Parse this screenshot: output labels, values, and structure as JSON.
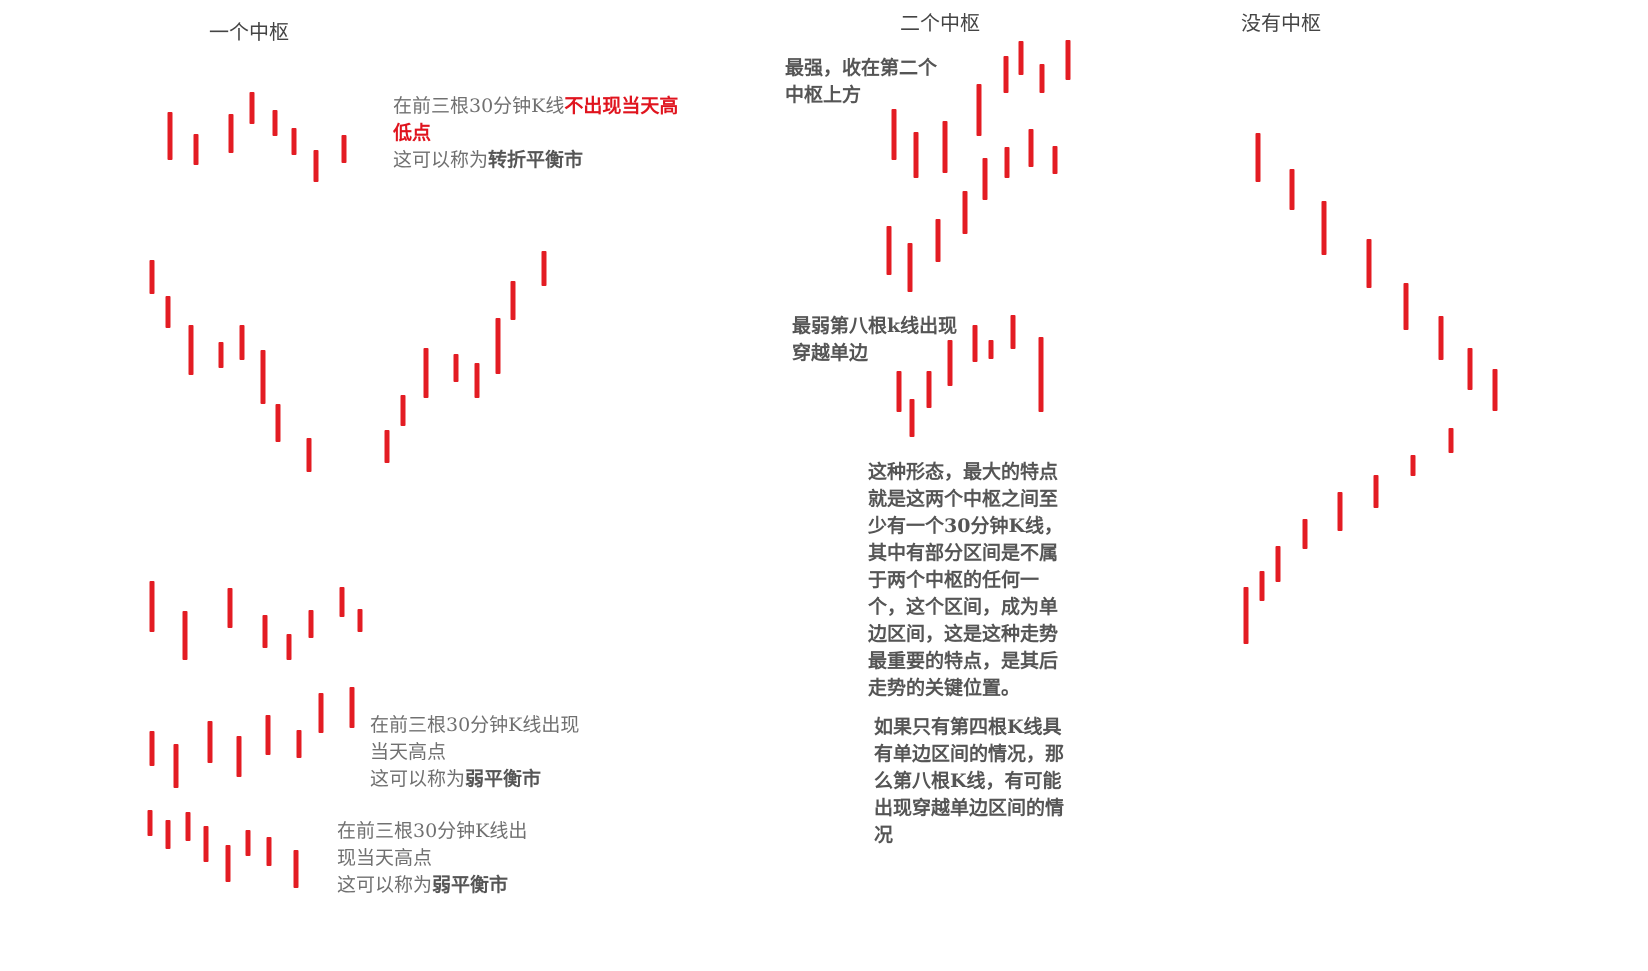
{
  "colors": {
    "bar": "#e31c23",
    "text": "#707070",
    "highlight": "#e0141e"
  },
  "titles": {
    "one": "一个中枢",
    "two": "二个中枢",
    "none": "没有中枢"
  },
  "notes": {
    "turn": {
      "l1": "在前三根30分钟K线",
      "l1_red": "不出现当天高",
      "l2": "低点",
      "l3a": "这可以称为",
      "l3b": "转折平衡市"
    },
    "weak1": {
      "l1": "在前三根30分钟K线出现",
      "l2": "当天高点",
      "l3a": "这可以称为",
      "l3b": "弱平衡市"
    },
    "weak2": {
      "l1": "在前三根30分钟K线出",
      "l2": "现当天高点",
      "l3a": "这可以称为",
      "l3b": "弱平衡市"
    },
    "strongest": {
      "l1": "最强，收在第二个",
      "l2": "中枢上方"
    },
    "weakest": {
      "l1": "最弱第八根k线出现",
      "l2": "穿越单边"
    },
    "feature": {
      "lines": [
        "这种形态，最大的特点",
        "就是这两个中枢之间至",
        "少有一个30分钟K线，",
        "其中有部分区间是不属",
        "于两个中枢的任何一",
        "个，这个区间，成为单",
        "边区间，这是这种走势",
        "最重要的特点，是其后",
        "走势的关键位置。"
      ]
    },
    "fourth": {
      "lines": [
        "如果只有第四根K线具",
        "有单边区间的情况，那",
        "么第八根K线，有可能",
        "出现穿越单边区间的情",
        "况"
      ]
    }
  },
  "diagram_bars": [
    {
      "group": "one-pivot-row1",
      "bars": [
        [
          170,
          112,
          160
        ],
        [
          196,
          134,
          165
        ],
        [
          231,
          114,
          153
        ],
        [
          252,
          92,
          124
        ],
        [
          275,
          110,
          136
        ],
        [
          294,
          128,
          155
        ],
        [
          316,
          150,
          182
        ],
        [
          344,
          135,
          163
        ]
      ]
    },
    {
      "group": "one-pivot-v",
      "bars": [
        [
          152,
          260,
          294
        ],
        [
          168,
          296,
          328
        ],
        [
          191,
          325,
          375
        ],
        [
          221,
          342,
          368
        ],
        [
          242,
          325,
          360
        ],
        [
          263,
          350,
          404
        ],
        [
          278,
          404,
          442
        ],
        [
          309,
          438,
          472
        ],
        [
          387,
          430,
          463
        ],
        [
          403,
          395,
          426
        ],
        [
          426,
          348,
          398
        ],
        [
          456,
          354,
          382
        ],
        [
          477,
          363,
          398
        ],
        [
          498,
          318,
          374
        ],
        [
          513,
          281,
          320
        ],
        [
          544,
          251,
          286
        ]
      ]
    },
    {
      "group": "one-pivot-row3",
      "bars": [
        [
          152,
          581,
          632
        ],
        [
          185,
          611,
          660
        ],
        [
          230,
          588,
          628
        ],
        [
          265,
          615,
          648
        ],
        [
          289,
          634,
          660
        ],
        [
          311,
          610,
          638
        ],
        [
          342,
          587,
          617
        ],
        [
          360,
          609,
          632
        ]
      ]
    },
    {
      "group": "one-pivot-row4",
      "bars": [
        [
          152,
          731,
          766
        ],
        [
          176,
          744,
          788
        ],
        [
          210,
          721,
          763
        ],
        [
          239,
          736,
          777
        ],
        [
          268,
          715,
          755
        ],
        [
          299,
          730,
          758
        ],
        [
          321,
          693,
          733
        ],
        [
          352,
          687,
          728
        ]
      ]
    },
    {
      "group": "one-pivot-row5",
      "bars": [
        [
          150,
          810,
          836
        ],
        [
          168,
          820,
          849
        ],
        [
          188,
          812,
          841
        ],
        [
          206,
          826,
          862
        ],
        [
          228,
          845,
          882
        ],
        [
          248,
          830,
          856
        ],
        [
          269,
          837,
          866
        ],
        [
          296,
          850,
          888
        ]
      ]
    },
    {
      "group": "two-pivots-strong",
      "bars": [
        [
          889,
          226,
          275
        ],
        [
          910,
          243,
          292
        ],
        [
          938,
          219,
          262
        ],
        [
          965,
          191,
          234
        ],
        [
          985,
          158,
          200
        ],
        [
          1007,
          147,
          178
        ],
        [
          1031,
          129,
          167
        ],
        [
          1055,
          146,
          174
        ],
        [
          894,
          109,
          160
        ],
        [
          916,
          132,
          178
        ],
        [
          945,
          121,
          173
        ],
        [
          979,
          84,
          136
        ],
        [
          1006,
          56,
          93
        ],
        [
          1021,
          41,
          75
        ],
        [
          1042,
          64,
          93
        ],
        [
          1068,
          40,
          80
        ]
      ]
    },
    {
      "group": "two-pivots-weak",
      "bars": [
        [
          899,
          371,
          412
        ],
        [
          912,
          399,
          437
        ],
        [
          929,
          371,
          408
        ],
        [
          950,
          340,
          386
        ],
        [
          975,
          325,
          362
        ],
        [
          991,
          340,
          359
        ],
        [
          1013,
          315,
          349
        ],
        [
          1041,
          337,
          412
        ]
      ]
    },
    {
      "group": "no-pivot-down",
      "bars": [
        [
          1258,
          133,
          182
        ],
        [
          1292,
          169,
          210
        ],
        [
          1324,
          201,
          255
        ],
        [
          1369,
          239,
          288
        ],
        [
          1406,
          283,
          330
        ],
        [
          1441,
          316,
          360
        ],
        [
          1470,
          348,
          390
        ],
        [
          1495,
          369,
          411
        ]
      ]
    },
    {
      "group": "no-pivot-up",
      "bars": [
        [
          1246,
          587,
          644
        ],
        [
          1262,
          571,
          601
        ],
        [
          1278,
          546,
          582
        ],
        [
          1305,
          519,
          549
        ],
        [
          1340,
          492,
          531
        ],
        [
          1376,
          475,
          508
        ],
        [
          1413,
          455,
          476
        ],
        [
          1451,
          428,
          453
        ]
      ]
    }
  ]
}
